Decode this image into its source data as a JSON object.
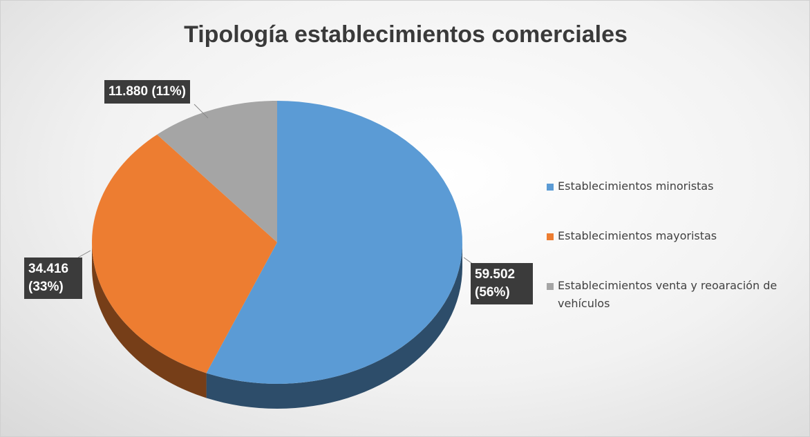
{
  "chart_data": {
    "type": "pie3d",
    "title": "Tipología establecimientos comerciales",
    "series": [
      {
        "name": "Establecimientos minoristas",
        "color": "#5b9bd5",
        "values": [
          59502
        ],
        "value_labels": [
          "59.502 (56%)"
        ]
      },
      {
        "name": "Establecimientos mayoristas",
        "color": "#ed7d31",
        "values": [
          34416
        ],
        "value_labels": [
          "34.416 (33%)"
        ]
      },
      {
        "name": "Establecimientos venta y reoaración de vehículos",
        "color": "#a5a5a5",
        "values": [
          11880
        ],
        "value_labels": [
          "11.880 (11%)"
        ]
      }
    ],
    "legend": "right"
  }
}
